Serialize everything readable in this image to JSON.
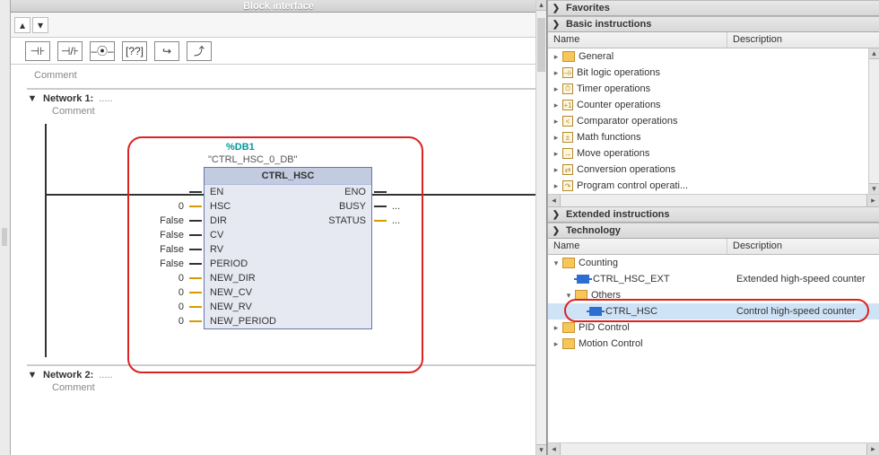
{
  "block_interface_label": "Block interface",
  "editor": {
    "comment_label": "Comment",
    "networks": [
      {
        "title": "Network 1:",
        "comment": "Comment"
      },
      {
        "title": "Network 2:",
        "comment": "Comment"
      }
    ],
    "db_label": "%DB1",
    "db_name": "\"CTRL_HSC_0_DB\"",
    "fb_title": "CTRL_HSC",
    "pins_left": [
      {
        "name": "EN",
        "val": "",
        "tick": "black"
      },
      {
        "name": "HSC",
        "val": "0",
        "tick": "y"
      },
      {
        "name": "DIR",
        "val": "False",
        "tick": "black"
      },
      {
        "name": "CV",
        "val": "False",
        "tick": "black"
      },
      {
        "name": "RV",
        "val": "False",
        "tick": "black"
      },
      {
        "name": "PERIOD",
        "val": "False",
        "tick": "black"
      },
      {
        "name": "NEW_DIR",
        "val": "0",
        "tick": "y"
      },
      {
        "name": "NEW_CV",
        "val": "0",
        "tick": "y"
      },
      {
        "name": "NEW_RV",
        "val": "0",
        "tick": "y"
      },
      {
        "name": "NEW_PERIOD",
        "val": "0",
        "tick": "y"
      }
    ],
    "pins_right": [
      {
        "name": "ENO",
        "val": "",
        "tick": "black"
      },
      {
        "name": "BUSY",
        "val": "...",
        "tick": "black"
      },
      {
        "name": "STATUS",
        "val": "...",
        "tick": "y"
      }
    ],
    "lad_tools": [
      "⊣⊦",
      "⊣/⊦",
      "–⦿–",
      "[??]",
      "↪",
      "⤴"
    ]
  },
  "side": {
    "favorites": "Favorites",
    "basic_instructions": "Basic instructions",
    "extended_instructions": "Extended instructions",
    "technology": "Technology",
    "col_name": "Name",
    "col_desc": "Description",
    "basic_items": [
      {
        "label": "General",
        "ico": "folder"
      },
      {
        "label": "Bit logic operations",
        "ico": "cat",
        "g": "⊣⊦"
      },
      {
        "label": "Timer operations",
        "ico": "cat",
        "g": "⏱"
      },
      {
        "label": "Counter operations",
        "ico": "cat",
        "g": "+1"
      },
      {
        "label": "Comparator operations",
        "ico": "cat",
        "g": "<"
      },
      {
        "label": "Math functions",
        "ico": "cat",
        "g": "±"
      },
      {
        "label": "Move operations",
        "ico": "cat",
        "g": "→"
      },
      {
        "label": "Conversion operations",
        "ico": "cat",
        "g": "⇄"
      },
      {
        "label": "Program control operati...",
        "ico": "cat",
        "g": "↷"
      }
    ],
    "tech_items": {
      "counting": "Counting",
      "ctrl_hsc_ext": {
        "name": "CTRL_HSC_EXT",
        "desc": "Extended high-speed counter"
      },
      "others": "Others",
      "ctrl_hsc": {
        "name": "CTRL_HSC",
        "desc": "Control high-speed counter"
      },
      "pid": "PID Control",
      "motion": "Motion Control"
    }
  }
}
